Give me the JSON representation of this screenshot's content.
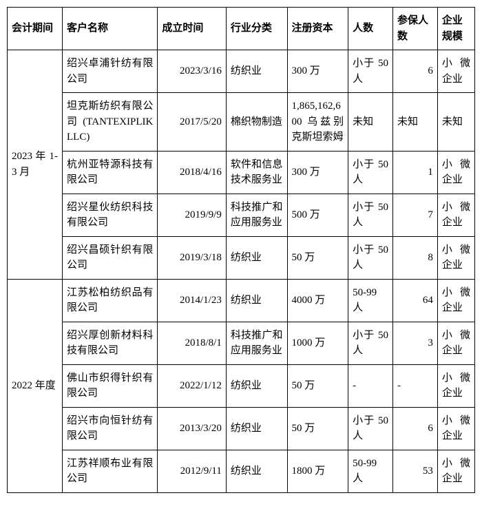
{
  "headers": {
    "period": "会计期间",
    "client": "客户名称",
    "founded": "成立时间",
    "industry": "行业分类",
    "capital": "注册资本",
    "people": "人数",
    "insured": "参保人数",
    "scale": "企业规模"
  },
  "groups": [
    {
      "period": "2023 年 1-3 月",
      "rows": [
        {
          "client": "绍兴卓浦针纺有限公司",
          "founded": "2023/3/16",
          "industry": "纺织业",
          "capital": "300 万",
          "people": "小于 50 人",
          "insured": "6",
          "scale": "小微企业"
        },
        {
          "client": "坦克斯纺织有限公司 (TANTEXIPLIK LLC)",
          "founded": "2017/5/20",
          "industry": "棉织物制造",
          "capital": "1,865,162,600 乌兹别克斯坦索姆",
          "people": "未知",
          "insured": "未知",
          "scale": "未知"
        },
        {
          "client": "杭州亚特源科技有限公司",
          "founded": "2018/4/16",
          "industry": "软件和信息技术服务业",
          "capital": "300 万",
          "people": "小于 50 人",
          "insured": "1",
          "scale": "小微企业"
        },
        {
          "client": "绍兴星伙纺织科技有限公司",
          "founded": "2019/9/9",
          "industry": "科技推广和应用服务业",
          "capital": "500 万",
          "people": "小于 50 人",
          "insured": "7",
          "scale": "小微企业"
        },
        {
          "client": "绍兴昌硕针织有限公司",
          "founded": "2019/3/18",
          "industry": "纺织业",
          "capital": "50 万",
          "people": "小于 50 人",
          "insured": "8",
          "scale": "小微企业"
        }
      ]
    },
    {
      "period": "2022 年度",
      "rows": [
        {
          "client": "江苏松柏纺织品有限公司",
          "founded": "2014/1/23",
          "industry": "纺织业",
          "capital": "4000 万",
          "people": "50-99 人",
          "insured": "64",
          "scale": "小微企业"
        },
        {
          "client": "绍兴厚创新材料科技有限公司",
          "founded": "2018/8/1",
          "industry": "科技推广和应用服务业",
          "capital": "1000 万",
          "people": "小于 50 人",
          "insured": "3",
          "scale": "小微企业"
        },
        {
          "client": "佛山市织得针织有限公司",
          "founded": "2022/1/12",
          "industry": "纺织业",
          "capital": "50 万",
          "people": "-",
          "insured": "-",
          "scale": "小微企业"
        },
        {
          "client": "绍兴市向恒针纺有限公司",
          "founded": "2013/3/20",
          "industry": "纺织业",
          "capital": "50 万",
          "people": "小于 50 人",
          "insured": "6",
          "scale": "小微企业"
        },
        {
          "client": "江苏祥顺布业有限公司",
          "founded": "2012/9/11",
          "industry": "纺织业",
          "capital": "1800 万",
          "people": "50-99 人",
          "insured": "53",
          "scale": "小微企业"
        }
      ]
    }
  ]
}
